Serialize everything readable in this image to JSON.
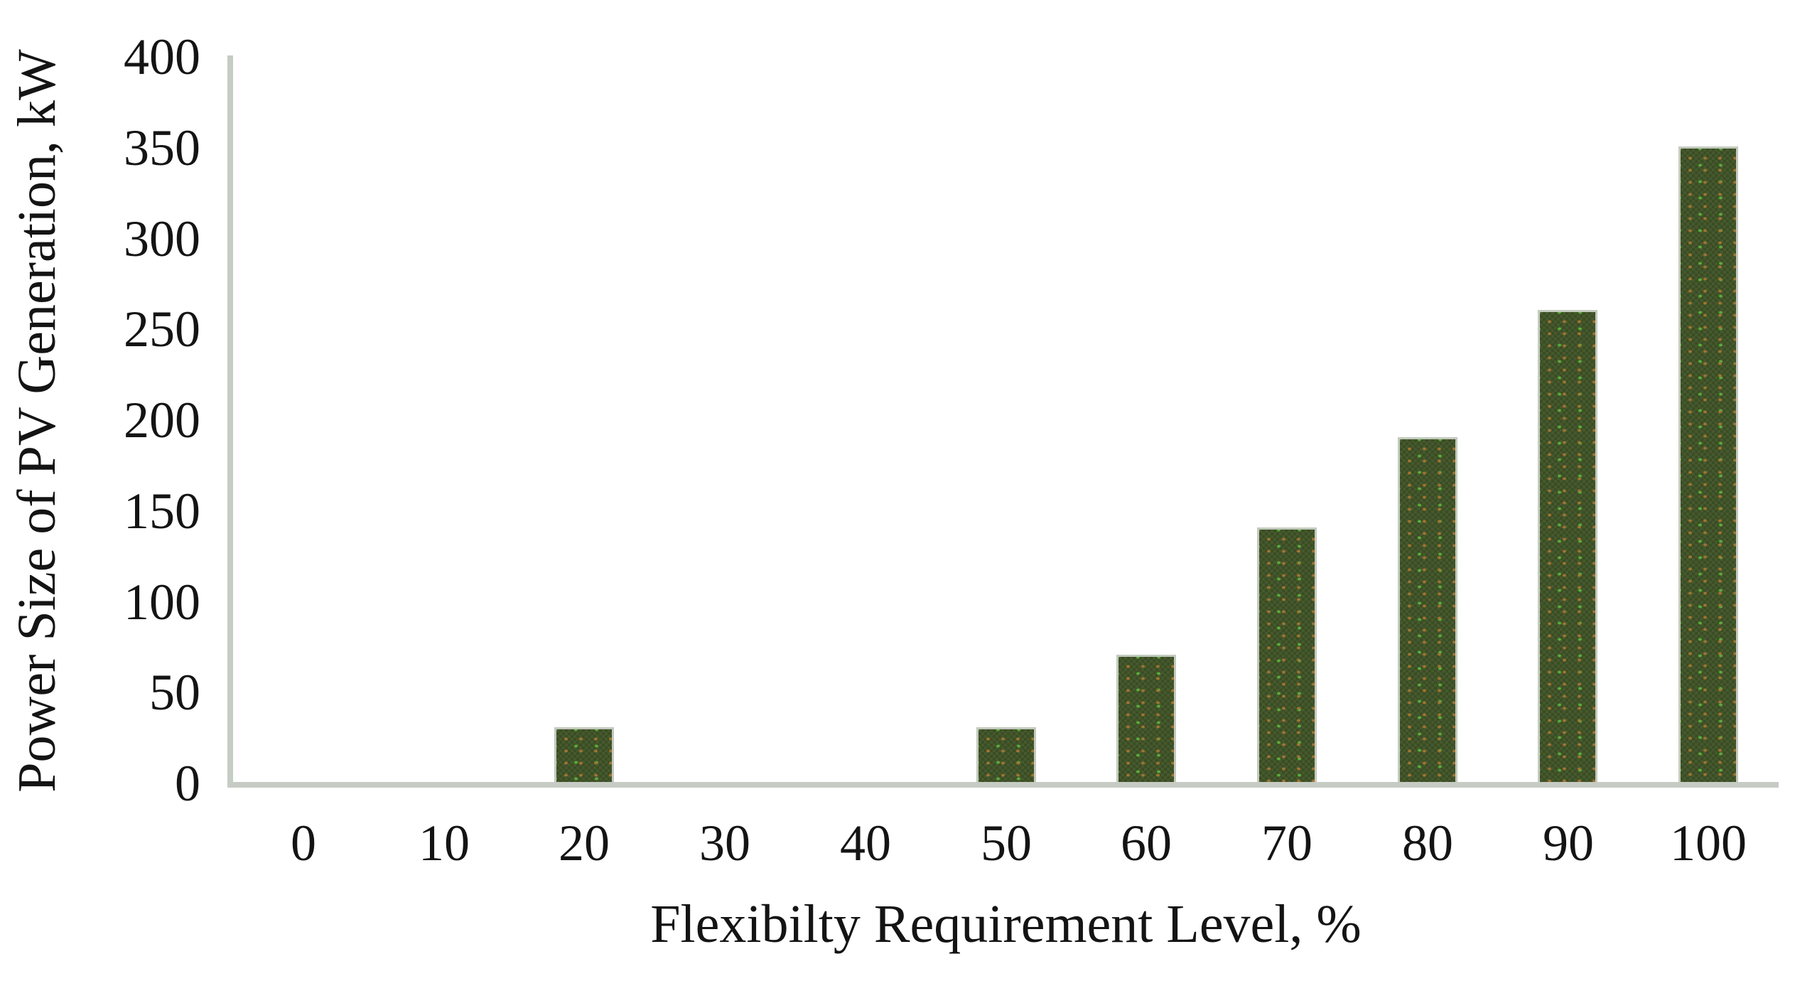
{
  "chart_data": {
    "type": "bar",
    "title": "",
    "categories": [
      0,
      10,
      20,
      30,
      40,
      50,
      60,
      70,
      80,
      90,
      100
    ],
    "values": [
      0,
      0,
      30,
      0,
      0,
      30,
      70,
      140,
      190,
      260,
      350
    ],
    "xlabel": "Flexibilty Requirement Level, %",
    "ylabel": "Power Size of PV Generation, kW",
    "ylim": [
      0,
      400
    ],
    "y_tick_step": 50,
    "grid": false,
    "legend": false,
    "bar_color": "#46582f"
  },
  "colors": {
    "background": "#ffffff",
    "bar_fill": "#46582f",
    "bar_border": "#c3cabe",
    "axis_line": "#c6ccc4",
    "text": "#141414",
    "speckle_orange": "#a47632",
    "speckle_green": "#5cb63c"
  }
}
